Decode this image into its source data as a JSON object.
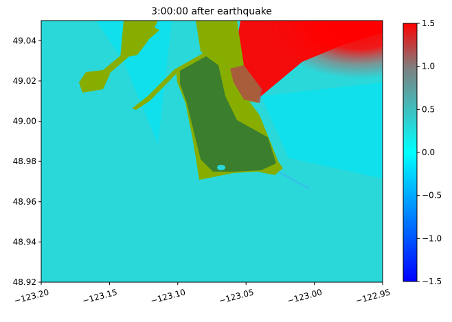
{
  "chart_data": {
    "type": "heatmap",
    "title": "3:00:00 after earthquake",
    "xlabel": "",
    "ylabel": "",
    "xlim": [
      -123.2,
      -122.95
    ],
    "ylim": [
      48.92,
      49.05
    ],
    "x_ticks": [
      -123.2,
      -123.15,
      -123.1,
      -123.05,
      -123.0,
      -122.95
    ],
    "x_tick_labels": [
      "−123.20",
      "−123.15",
      "−123.10",
      "−123.05",
      "−123.00",
      "−122.95"
    ],
    "y_ticks": [
      48.92,
      48.94,
      48.96,
      48.98,
      49.0,
      49.02,
      49.04
    ],
    "y_tick_labels": [
      "48.92",
      "48.94",
      "48.96",
      "48.98",
      "49.00",
      "49.02",
      "49.04"
    ],
    "colorbar": {
      "range": [
        -1.5,
        1.5
      ],
      "ticks": [
        -1.5,
        -1.0,
        -0.5,
        0.0,
        0.5,
        1.0,
        1.5
      ],
      "tick_labels": [
        "−1.5",
        "−1.0",
        "−0.5",
        "0.0",
        "0.5",
        "1.0",
        "1.5"
      ],
      "colors": [
        "#0000ff",
        "#00ffff",
        "#ff0000"
      ]
    },
    "colors": {
      "water": "#2ad8da",
      "land_dry": "#86ad00",
      "land_dark": "#3a7e2e",
      "high_surface": "#ff0000"
    }
  }
}
